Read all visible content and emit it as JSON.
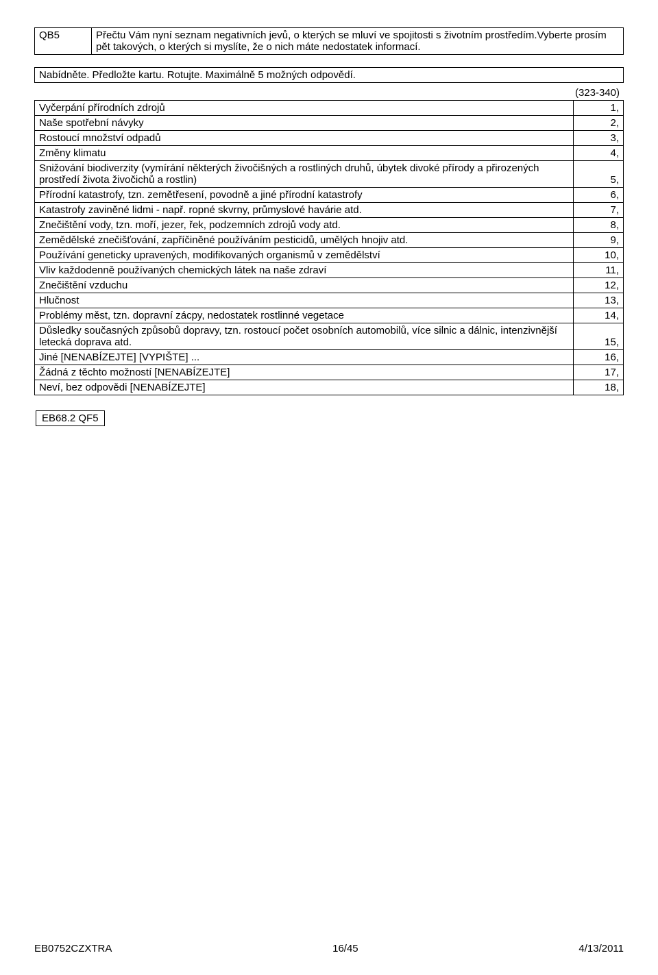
{
  "question": {
    "id": "QB5",
    "text": "Přečtu Vám nyní seznam negativních jevů, o kterých se mluví ve spojitosti s životním prostředím.Vyberte prosím pět takových, o kterých si myslíte, že o nich máte nedostatek informací."
  },
  "instruction": "Nabídněte. Předložte kartu. Rotujte. Maximálně 5 možných odpovědí.",
  "code_range": "(323-340)",
  "answers": [
    {
      "text": "Vyčerpání přírodních zdrojů",
      "num": "1,"
    },
    {
      "text": "Naše spotřební návyky",
      "num": "2,"
    },
    {
      "text": "Rostoucí množství odpadů",
      "num": "3,"
    },
    {
      "text": "Změny klimatu",
      "num": "4,"
    },
    {
      "text": "Snižování biodiverzity (vymírání některých živočišných a rostliných druhů, úbytek divoké přírody a přirozených prostředí života živočichů a rostlin)",
      "num": "5,"
    },
    {
      "text": "Přírodní katastrofy, tzn. zemětřesení, povodně a jiné přírodní katastrofy",
      "num": "6,"
    },
    {
      "text": "Katastrofy zaviněné lidmi - např. ropné skvrny, průmyslové havárie atd.",
      "num": "7,"
    },
    {
      "text": "Znečištění vody, tzn. moří, jezer, řek, podzemních zdrojů vody atd.",
      "num": "8,"
    },
    {
      "text": "Zemědělské znečišťování, zapříčiněné používáním pesticidů, umělých hnojiv atd.",
      "num": "9,"
    },
    {
      "text": "Používání geneticky upravených, modifikovaných organismů v zemědělství",
      "num": "10,"
    },
    {
      "text": "Vliv každodenně používaných chemických látek na naše zdraví",
      "num": "11,"
    },
    {
      "text": "Znečištění vzduchu",
      "num": "12,"
    },
    {
      "text": "Hlučnost",
      "num": "13,"
    },
    {
      "text": "Problémy měst, tzn. dopravní zácpy, nedostatek rostlinné vegetace",
      "num": "14,"
    },
    {
      "text": "Důsledky současných způsobů dopravy, tzn. rostoucí počet osobních automobilů, více silnic a dálnic, intenzivnější letecká doprava atd.",
      "num": "15,"
    },
    {
      "text": "Jiné [NENABÍZEJTE] [VYPIŠTE] ...",
      "num": "16,"
    },
    {
      "text": "Žádná z těchto možností [NENABÍZEJTE]",
      "num": "17,"
    },
    {
      "text": "Neví, bez odpovědi [NENABÍZEJTE]",
      "num": "18,"
    }
  ],
  "answer_multiline": {
    "4": true,
    "5": true,
    "6": true,
    "8": true,
    "9": true,
    "14": true
  },
  "reference": "EB68.2 QF5",
  "footer": {
    "left": "EB0752CZXTRA",
    "center": "16/45",
    "right": "4/13/2011"
  }
}
